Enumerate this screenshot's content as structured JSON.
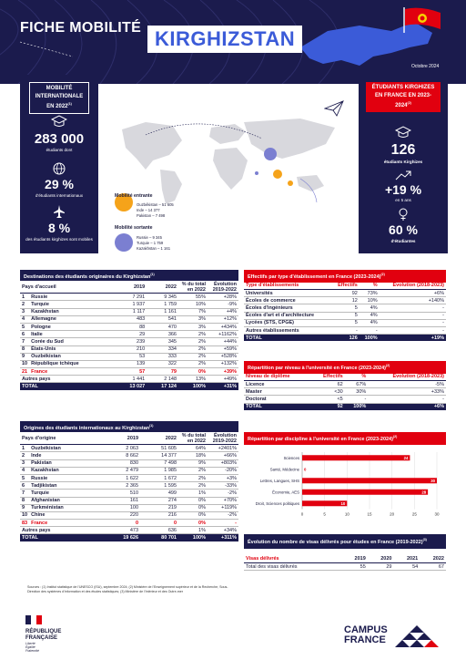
{
  "header": {
    "fiche": "FICHE MOBILITÉ",
    "country": "KIRGHIZSTAN",
    "date": "Octobre 2024"
  },
  "left": {
    "label": "MOBILITÉ INTERNATIONALE EN 2022",
    "sup": "(1)",
    "num1": "283 000",
    "txt1": "étudiants dont",
    "num2": "29 %",
    "txt2": "d'étudiants internationaux",
    "num3": "8 %",
    "txt3": "des étudiants kirghizes sont mobiles"
  },
  "map": {
    "entrante_title": "Mobilité entrante",
    "entrante_lines": [
      "Ouzbékistan – 51 605",
      "Inde – 14 377",
      "Pakistan – 7 498"
    ],
    "sortante_title": "Mobilité sortante",
    "sortante_lines": [
      "Russie – 9 345",
      "Turquie – 1 759",
      "Kazakhstan – 1 161"
    ],
    "colors": {
      "entrante": "#f5a31a",
      "sortante": "#7b7fd1"
    }
  },
  "right": {
    "label": "ÉTUDIANTS KIRGHIZES EN FRANCE EN 2023-2024",
    "sup": "(2)",
    "num1": "126",
    "txt1": "étudiants Kirghizes",
    "num2": "+19 %",
    "txt2": "en 5 ans",
    "num3": "60 %",
    "txt3": "d'étudiantes"
  },
  "t1": {
    "title": "Destinations des étudiants originaires du Kirghizstan",
    "sup": "(1)",
    "headers": [
      "Pays d'accueil",
      "2019",
      "2022",
      "% du total en 2022",
      "Évolution 2019-2022"
    ],
    "rows": [
      [
        "1",
        "Russie",
        "7 291",
        "9 345",
        "55%",
        "+28%"
      ],
      [
        "2",
        "Turquie",
        "1 937",
        "1 759",
        "10%",
        "-9%"
      ],
      [
        "3",
        "Kazakhstan",
        "1 117",
        "1 161",
        "7%",
        "+4%"
      ],
      [
        "4",
        "Allemagne",
        "483",
        "541",
        "3%",
        "+12%"
      ],
      [
        "5",
        "Pologne",
        "88",
        "470",
        "3%",
        "+434%"
      ],
      [
        "6",
        "Italie",
        "29",
        "366",
        "2%",
        "+1162%"
      ],
      [
        "7",
        "Corée du Sud",
        "239",
        "345",
        "2%",
        "+44%"
      ],
      [
        "8",
        "États-Unis",
        "210",
        "334",
        "2%",
        "+59%"
      ],
      [
        "9",
        "Ouzbékistan",
        "53",
        "333",
        "2%",
        "+528%"
      ],
      [
        "10",
        "République tchèque",
        "139",
        "322",
        "2%",
        "+132%"
      ],
      [
        "21",
        "France",
        "57",
        "79",
        "0%",
        "+39%"
      ]
    ],
    "autres": [
      "Autres pays",
      "1 441",
      "2 148",
      "13%",
      "+49%"
    ],
    "total": [
      "TOTAL",
      "13 027",
      "17 124",
      "100%",
      "+31%"
    ]
  },
  "t2": {
    "title": "Origines des étudiants internationaux au Kirghizstan",
    "sup": "(1)",
    "headers": [
      "Pays d'origine",
      "2019",
      "2022",
      "% du total en 2022",
      "Évolution 2019-2022"
    ],
    "rows": [
      [
        "1",
        "Ouzbékistan",
        "2 063",
        "51 605",
        "64%",
        "+2401%"
      ],
      [
        "2",
        "Inde",
        "8 662",
        "14 377",
        "18%",
        "+66%"
      ],
      [
        "3",
        "Pakistan",
        "830",
        "7 498",
        "9%",
        "+803%"
      ],
      [
        "4",
        "Kazakhstan",
        "2 479",
        "1 985",
        "2%",
        "-20%"
      ],
      [
        "5",
        "Russie",
        "1 622",
        "1 672",
        "2%",
        "+3%"
      ],
      [
        "6",
        "Tadjikistan",
        "2 365",
        "1 595",
        "2%",
        "-33%"
      ],
      [
        "7",
        "Turquie",
        "510",
        "499",
        "1%",
        "-2%"
      ],
      [
        "8",
        "Afghanistan",
        "161",
        "274",
        "0%",
        "+70%"
      ],
      [
        "9",
        "Turkménistan",
        "100",
        "219",
        "0%",
        "+119%"
      ],
      [
        "10",
        "Chine",
        "220",
        "216",
        "0%",
        "-2%"
      ],
      [
        "83",
        "France",
        "0",
        "0",
        "0%",
        "-"
      ]
    ],
    "autres": [
      "Autres pays",
      "473",
      "636",
      "1%",
      "+34%"
    ],
    "total": [
      "TOTAL",
      "19 626",
      "80 701",
      "100%",
      "+311%"
    ]
  },
  "t3": {
    "title": "Effectifs par type d'établissement en France (2023-2024)",
    "sup": "(2)",
    "headers": [
      "Type d'établissements",
      "Effectifs",
      "%",
      "Évolution (2018-2023)"
    ],
    "rows": [
      [
        "Universités",
        "92",
        "73%",
        "+6%"
      ],
      [
        "Écoles de commerce",
        "12",
        "10%",
        "+140%"
      ],
      [
        "Écoles d'ingénieurs",
        "5",
        "4%",
        "-"
      ],
      [
        "Écoles d'art et d'architecture",
        "5",
        "4%",
        "-"
      ],
      [
        "Lycées (STS, CPGE)",
        "5",
        "4%",
        "-"
      ],
      [
        "Autres établissements",
        "-",
        "-",
        "-"
      ]
    ],
    "total": [
      "TOTAL",
      "126",
      "100%",
      "+19%"
    ]
  },
  "t4": {
    "title": "Répartition par niveau à l'université en France (2023-2024)",
    "sup": "(2)",
    "headers": [
      "Niveau de diplôme",
      "Effectifs",
      "%",
      "Évolution (2018-2023)"
    ],
    "rows": [
      [
        "Licence",
        "62",
        "67%",
        "-5%"
      ],
      [
        "Master",
        "<30",
        "30%",
        "+33%"
      ],
      [
        "Doctorat",
        "<5",
        "-",
        "-"
      ]
    ],
    "total": [
      "TOTAL",
      "92",
      "100%",
      "+6%"
    ]
  },
  "chart_data": {
    "type": "bar",
    "title": "Répartition par discipline à l'université en France (2023-2024)",
    "sup": "(2)",
    "categories": [
      "Sciences",
      "Santé, Médecine",
      "Lettres, Langues, SHS",
      "Économie, AES",
      "Droit, Sciences politiques"
    ],
    "values": [
      24,
      0,
      30,
      28,
      10
    ],
    "xlim": [
      0,
      30
    ],
    "ticks": [
      0,
      5,
      10,
      15,
      20,
      25,
      30
    ],
    "color": "#e1000f"
  },
  "t5": {
    "title": "Évolution du nombre de visas délivrés pour études en France (2019-2022)",
    "sup": "(3)",
    "headers": [
      "Visas délivrés",
      "2019",
      "2020",
      "2021",
      "2022"
    ],
    "row": [
      "Total des visas délivrés",
      "55",
      "29",
      "54",
      "67"
    ]
  },
  "sources": "Sources : (1) Institut statistique de l'UNESCO (ISU), septembre 2024; (2) Ministère de l'Enseignement supérieur et de la Recherche, Sous-Direction des systèmes d'information et des études statistiques; (3) Ministère de l'Intérieur et des Outre-mer",
  "footer": {
    "rf1": "RÉPUBLIQUE",
    "rf2": "FRANÇAISE",
    "rf3": "Liberté",
    "rf4": "Égalité",
    "rf5": "Fraternité",
    "cf1": "CAMPUS",
    "cf2": "FRANCE"
  }
}
